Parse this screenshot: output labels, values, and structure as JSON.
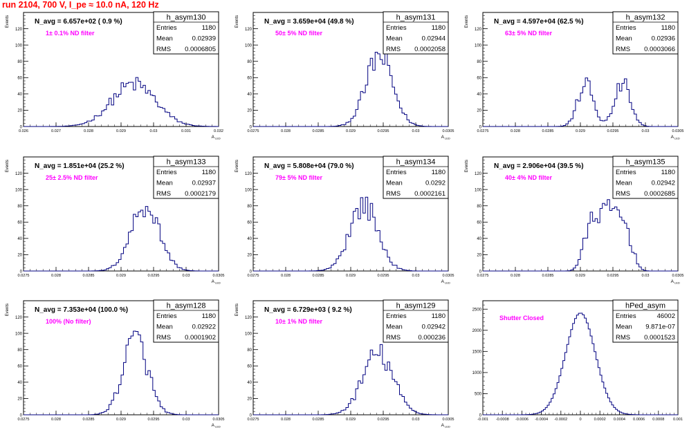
{
  "title": "run 2104,   700 V, I_pe ≈ 10.0 nA, 120 Hz",
  "colors": {
    "hist": "#000080",
    "annotation": "#ff00ff",
    "title": "#ff0000",
    "axis": "#000000"
  },
  "chart_data": [
    {
      "type": "histogram",
      "name": "h_asym130",
      "nav": "N_avg = 6.657e+02 ( 0.9 %)",
      "filter": "1± 0.1% ND filter",
      "stats": [
        [
          "Entries",
          "1180"
        ],
        [
          "Mean",
          "0.02939"
        ],
        [
          "RMS",
          "0.0006805"
        ]
      ],
      "xlabel": "A_LED",
      "ylabel": "Events",
      "xlim": [
        0.026,
        0.032
      ],
      "ylim": [
        0,
        140
      ],
      "xticks": [
        0.026,
        0.027,
        0.028,
        0.029,
        0.03,
        0.031,
        0.032
      ],
      "xticklabels": [
        "0.026",
        "0.027",
        "0.028",
        "0.029",
        "0.03",
        "0.031",
        "0.032"
      ],
      "yticks": [
        0,
        20,
        40,
        60,
        80,
        100,
        120
      ],
      "mean": 0.02939,
      "rms": 0.0006805
    },
    {
      "type": "histogram",
      "name": "h_asym131",
      "nav": "N_avg = 3.659e+04 (49.8 %)",
      "filter": "50± 5% ND filter",
      "stats": [
        [
          "Entries",
          "1180"
        ],
        [
          "Mean",
          "0.02944"
        ],
        [
          "RMS",
          "0.0002058"
        ]
      ],
      "xlabel": "A_LED",
      "ylabel": "Events",
      "xlim": [
        0.0275,
        0.0305
      ],
      "ylim": [
        0,
        140
      ],
      "xticks": [
        0.0275,
        0.028,
        0.0285,
        0.029,
        0.0295,
        0.03,
        0.0305
      ],
      "xticklabels": [
        "0.0275",
        "0.028",
        "0.0285",
        "0.029",
        "0.0295",
        "0.03",
        "0.0305"
      ],
      "yticks": [
        0,
        20,
        40,
        60,
        80,
        100,
        120
      ],
      "mean": 0.02944,
      "rms": 0.0002058
    },
    {
      "type": "histogram",
      "name": "h_asym132",
      "nav": "N_avg = 4.597e+04 (62.5 %)",
      "filter": "63± 5% ND filter",
      "stats": [
        [
          "Entries",
          "1180"
        ],
        [
          "Mean",
          "0.02936"
        ],
        [
          "RMS",
          "0.0003066"
        ]
      ],
      "xlabel": "A_LED",
      "ylabel": "Events",
      "xlim": [
        0.0275,
        0.0305
      ],
      "ylim": [
        0,
        140
      ],
      "xticks": [
        0.0275,
        0.028,
        0.0285,
        0.029,
        0.0295,
        0.03,
        0.0305
      ],
      "xticklabels": [
        "0.0275",
        "0.028",
        "0.0285",
        "0.029",
        "0.0295",
        "0.03",
        "0.0305"
      ],
      "yticks": [
        0,
        20,
        40,
        60,
        80,
        100,
        120
      ],
      "mean": 0.02936,
      "rms": 0.0003066,
      "bimodal": true
    },
    {
      "type": "histogram",
      "name": "h_asym133",
      "nav": "N_avg = 1.851e+04 (25.2 %)",
      "filter": "25± 2.5% ND filter",
      "stats": [
        [
          "Entries",
          "1180"
        ],
        [
          "Mean",
          "0.02937"
        ],
        [
          "RMS",
          "0.0002179"
        ]
      ],
      "xlabel": "A_LED",
      "ylabel": "Events",
      "xlim": [
        0.0275,
        0.0305
      ],
      "ylim": [
        0,
        140
      ],
      "xticks": [
        0.0275,
        0.028,
        0.0285,
        0.029,
        0.0295,
        0.03,
        0.0305
      ],
      "xticklabels": [
        "0.0275",
        "0.028",
        "0.0285",
        "0.029",
        "0.0295",
        "0.03",
        "0.0305"
      ],
      "yticks": [
        0,
        20,
        40,
        60,
        80,
        100,
        120
      ],
      "mean": 0.02937,
      "rms": 0.0002179
    },
    {
      "type": "histogram",
      "name": "h_asym134",
      "nav": "N_avg = 5.808e+04 (79.0 %)",
      "filter": "79± 5% ND filter",
      "stats": [
        [
          "Entries",
          "1180"
        ],
        [
          "Mean",
          "0.0292"
        ],
        [
          "RMS",
          "0.0002161"
        ]
      ],
      "xlabel": "A_LED",
      "ylabel": "Events",
      "xlim": [
        0.0275,
        0.0305
      ],
      "ylim": [
        0,
        140
      ],
      "xticks": [
        0.0275,
        0.028,
        0.0285,
        0.029,
        0.0295,
        0.03,
        0.0305
      ],
      "xticklabels": [
        "0.0275",
        "0.028",
        "0.0285",
        "0.029",
        "0.0295",
        "0.03",
        "0.0305"
      ],
      "yticks": [
        0,
        20,
        40,
        60,
        80,
        100,
        120
      ],
      "mean": 0.0292,
      "rms": 0.0002161
    },
    {
      "type": "histogram",
      "name": "h_asym135",
      "nav": "N_avg = 2.906e+04 (39.5 %)",
      "filter": "40± 4% ND filter",
      "stats": [
        [
          "Entries",
          "1180"
        ],
        [
          "Mean",
          "0.02942"
        ],
        [
          "RMS",
          "0.0002685"
        ]
      ],
      "xlabel": "A_LED",
      "ylabel": "Events",
      "xlim": [
        0.0275,
        0.0305
      ],
      "ylim": [
        0,
        140
      ],
      "xticks": [
        0.0275,
        0.028,
        0.0285,
        0.029,
        0.0295,
        0.03,
        0.0305
      ],
      "xticklabels": [
        "0.0275",
        "0.028",
        "0.0285",
        "0.029",
        "0.0295",
        "0.03",
        "0.0305"
      ],
      "yticks": [
        0,
        20,
        40,
        60,
        80,
        100,
        120
      ],
      "mean": 0.02942,
      "rms": 0.0002685,
      "flat": true
    },
    {
      "type": "histogram",
      "name": "h_asym128",
      "nav": "N_avg = 7.353e+04 (100.0 %)",
      "filter": "100% (No filter)",
      "stats": [
        [
          "Entries",
          "1180"
        ],
        [
          "Mean",
          "0.02922"
        ],
        [
          "RMS",
          "0.0001902"
        ]
      ],
      "xlabel": "A_LED",
      "ylabel": "Events",
      "xlim": [
        0.0275,
        0.0305
      ],
      "ylim": [
        0,
        140
      ],
      "xticks": [
        0.0275,
        0.028,
        0.0285,
        0.029,
        0.0295,
        0.03,
        0.0305
      ],
      "xticklabels": [
        "0.0275",
        "0.028",
        "0.0285",
        "0.029",
        "0.0295",
        "0.03",
        "0.0305"
      ],
      "yticks": [
        0,
        20,
        40,
        60,
        80,
        100,
        120
      ],
      "mean": 0.02922,
      "rms": 0.0001902
    },
    {
      "type": "histogram",
      "name": "h_asym129",
      "nav": "N_avg = 6.729e+03 ( 9.2 %)",
      "filter": "10± 1% ND filter",
      "stats": [
        [
          "Entries",
          "1180"
        ],
        [
          "Mean",
          "0.02942"
        ],
        [
          "RMS",
          "0.000236"
        ]
      ],
      "xlabel": "A_LED",
      "ylabel": "Events",
      "xlim": [
        0.0275,
        0.0305
      ],
      "ylim": [
        0,
        140
      ],
      "xticks": [
        0.0275,
        0.028,
        0.0285,
        0.029,
        0.0295,
        0.03,
        0.0305
      ],
      "xticklabels": [
        "0.0275",
        "0.028",
        "0.0285",
        "0.029",
        "0.0295",
        "0.03",
        "0.0305"
      ],
      "yticks": [
        0,
        20,
        40,
        60,
        80,
        100,
        120
      ],
      "mean": 0.02942,
      "rms": 0.000236
    },
    {
      "type": "histogram",
      "name": "hPed_asym",
      "nav": "",
      "filter": "Shutter Closed",
      "stats": [
        [
          "Entries",
          "46002"
        ],
        [
          "Mean",
          "9.871e-07"
        ],
        [
          "RMS",
          "0.0001523"
        ]
      ],
      "xlabel": "",
      "ylabel": "",
      "xlim": [
        -0.001,
        0.001
      ],
      "ylim": [
        0,
        2700
      ],
      "xticks": [
        -0.001,
        -0.0008,
        -0.0006,
        -0.0004,
        -0.0002,
        0,
        0.0002,
        0.0004,
        0.0006,
        0.0008,
        0.001
      ],
      "xticklabels": [
        "-0.001",
        "-0.0008",
        "-0.0006",
        "-0.0004",
        "-0.0002",
        "0",
        "0.0002",
        "0.0004",
        "0.0006",
        "0.0008",
        "0.001"
      ],
      "yticks": [
        0,
        500,
        1000,
        1500,
        2000,
        2500
      ],
      "mean": 9.9e-07,
      "rms": 0.0001523
    }
  ]
}
